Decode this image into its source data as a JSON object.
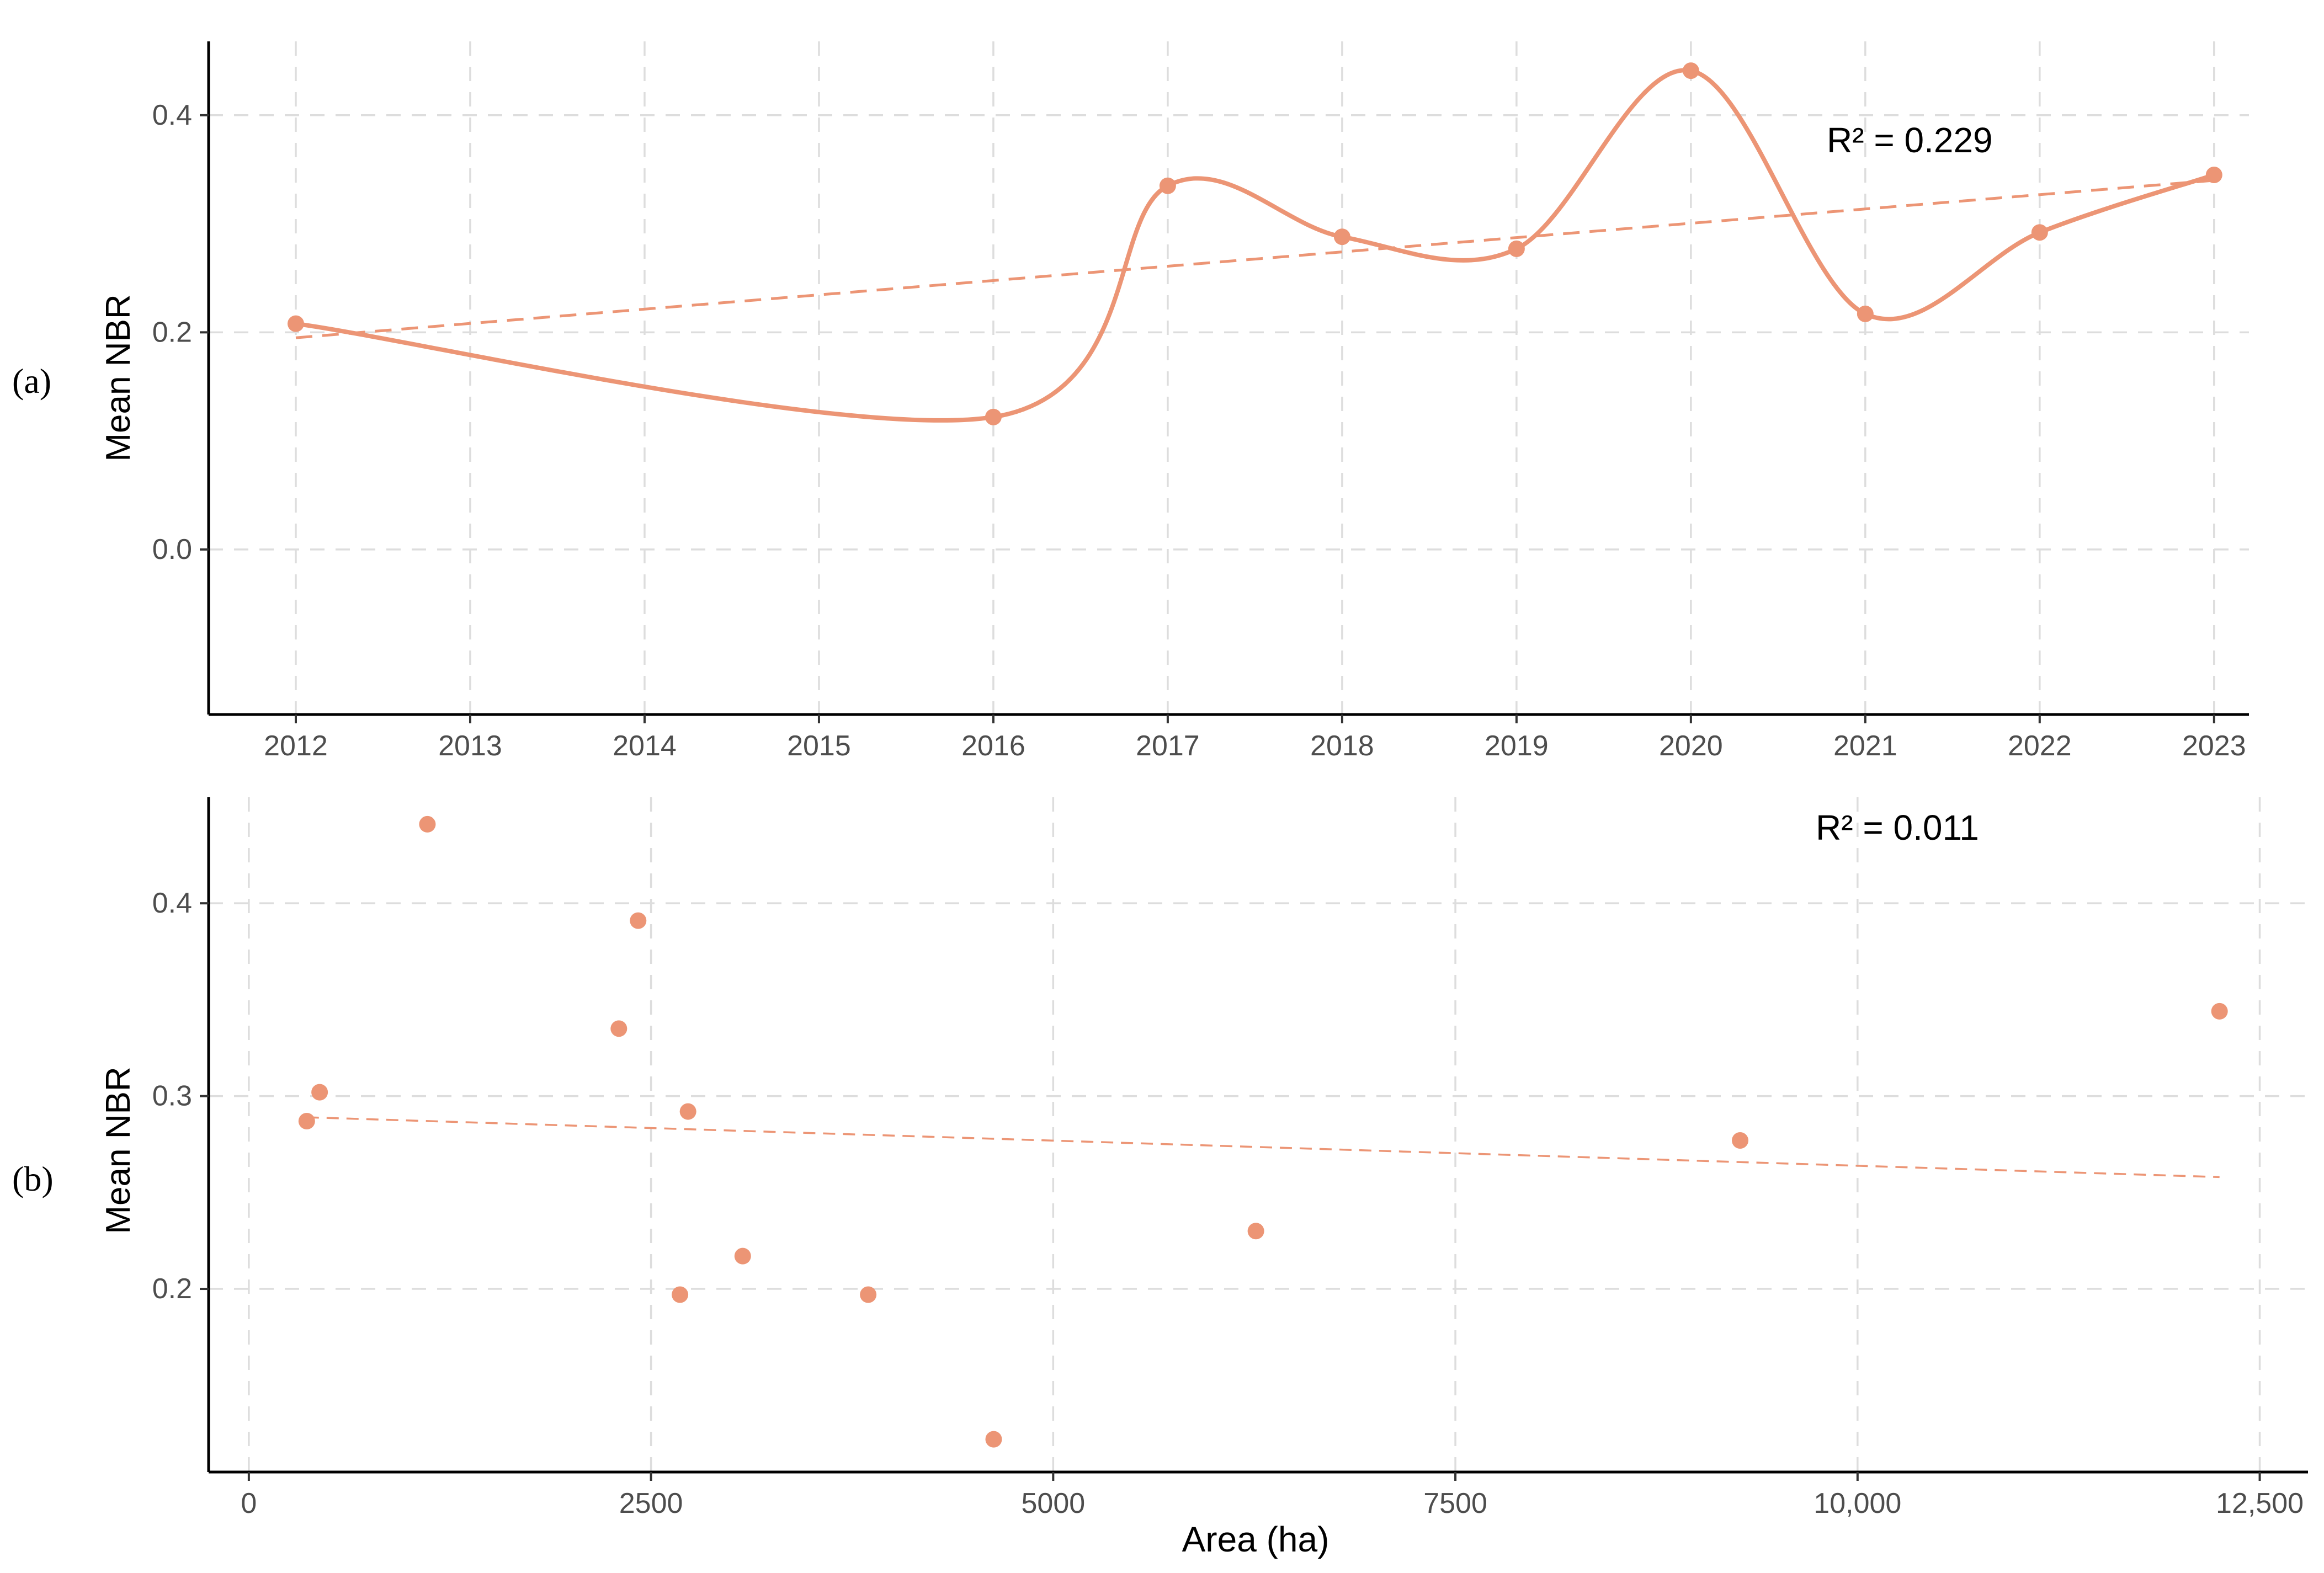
{
  "colors": {
    "series": "#EC9575",
    "grid": "#DDDDDD",
    "axis": "#000000",
    "tick_text": "#4D4D4D",
    "text": "#000000"
  },
  "chart_data": [
    {
      "panel": "(a)",
      "type": "line",
      "ylabel": "Mean NBR",
      "xlabel": "",
      "x": [
        2012,
        2016,
        2017,
        2018,
        2019,
        2020,
        2021,
        2022,
        2023
      ],
      "y": [
        0.208,
        0.122,
        0.335,
        0.288,
        0.277,
        0.441,
        0.217,
        0.292,
        0.345
      ],
      "xlim": [
        2011.5,
        2023.2
      ],
      "ylim": [
        -0.152,
        0.468
      ],
      "x_ticks": [
        2012,
        2013,
        2014,
        2015,
        2016,
        2017,
        2018,
        2019,
        2020,
        2021,
        2022,
        2023
      ],
      "x_tick_labels": [
        "2012",
        "2013",
        "2014",
        "2015",
        "2016",
        "2017",
        "2018",
        "2019",
        "2020",
        "2021",
        "2022",
        "2023"
      ],
      "y_ticks": [
        0.0,
        0.2,
        0.4
      ],
      "y_tick_labels": [
        "0.0",
        "0.2",
        "0.4"
      ],
      "smooth_curve": "spline through points",
      "trendline": {
        "style": "dashed",
        "x": [
          2012,
          2023
        ],
        "y": [
          0.195,
          0.34
        ]
      },
      "annotation": "R² = 0.229",
      "grid": true
    },
    {
      "panel": "(b)",
      "type": "scatter",
      "ylabel": "Mean NBR",
      "xlabel": "Area (ha)",
      "x": [
        360,
        440,
        1110,
        2300,
        2420,
        2680,
        2730,
        3070,
        3850,
        4630,
        6260,
        9270,
        12250
      ],
      "y": [
        0.287,
        0.302,
        0.441,
        0.335,
        0.391,
        0.197,
        0.292,
        0.217,
        0.197,
        0.122,
        0.23,
        0.277,
        0.344
      ],
      "xlim": [
        -250,
        12800
      ],
      "ylim": [
        0.105,
        0.455
      ],
      "x_ticks": [
        0,
        2500,
        5000,
        7500,
        10000,
        12500
      ],
      "x_tick_labels": [
        "0",
        "2500",
        "5000",
        "7500",
        "10,000",
        "12,500"
      ],
      "y_ticks": [
        0.2,
        0.3,
        0.4
      ],
      "y_tick_labels": [
        "0.2",
        "0.3",
        "0.4"
      ],
      "trendline": {
        "style": "dashed",
        "x": [
          360,
          12250
        ],
        "y": [
          0.289,
          0.258
        ]
      },
      "annotation": "R² = 0.011",
      "grid": true
    }
  ]
}
